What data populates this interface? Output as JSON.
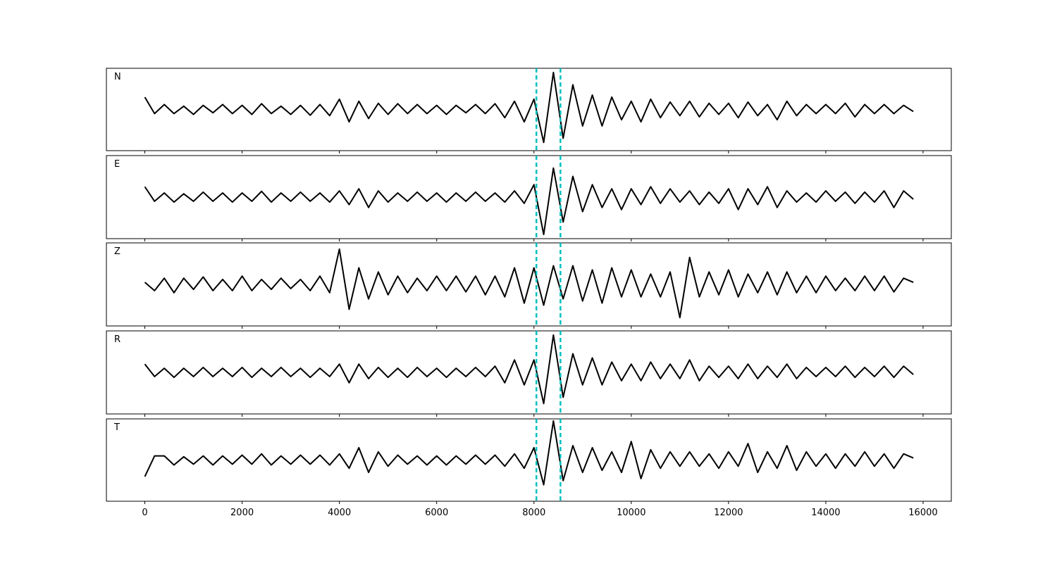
{
  "chart_data": {
    "type": "line",
    "x": [
      0,
      200,
      400,
      600,
      800,
      1000,
      1200,
      1400,
      1600,
      1800,
      2000,
      2200,
      2400,
      2600,
      2800,
      3000,
      3200,
      3400,
      3600,
      3800,
      4000,
      4200,
      4400,
      4600,
      4800,
      5000,
      5200,
      5400,
      5600,
      5800,
      6000,
      6200,
      6400,
      6600,
      6800,
      7000,
      7200,
      7400,
      7600,
      7800,
      8000,
      8200,
      8400,
      8600,
      8800,
      9000,
      9200,
      9400,
      9600,
      9800,
      10000,
      10200,
      10400,
      10600,
      10800,
      11000,
      11200,
      11400,
      11600,
      11800,
      12000,
      12200,
      12400,
      12600,
      12800,
      13000,
      13200,
      13400,
      13600,
      13800,
      14000,
      14200,
      14400,
      14600,
      14800,
      15000,
      15200,
      15400,
      15600,
      15800
    ],
    "series": [
      {
        "name": "N",
        "color": "#000000",
        "values": [
          0.3,
          -0.1,
          0.12,
          -0.1,
          0.08,
          -0.12,
          0.1,
          -0.08,
          0.12,
          -0.1,
          0.1,
          -0.12,
          0.14,
          -0.1,
          0.08,
          -0.12,
          0.1,
          -0.14,
          0.12,
          -0.15,
          0.25,
          -0.3,
          0.2,
          -0.22,
          0.15,
          -0.12,
          0.14,
          -0.1,
          0.12,
          -0.1,
          0.1,
          -0.12,
          0.1,
          -0.08,
          0.12,
          -0.1,
          0.14,
          -0.2,
          0.2,
          -0.3,
          0.25,
          -0.8,
          0.9,
          -0.7,
          0.6,
          -0.4,
          0.35,
          -0.4,
          0.3,
          -0.25,
          0.2,
          -0.3,
          0.25,
          -0.2,
          0.18,
          -0.15,
          0.2,
          -0.18,
          0.15,
          -0.12,
          0.15,
          -0.2,
          0.18,
          -0.15,
          0.12,
          -0.25,
          0.2,
          -0.15,
          0.12,
          -0.1,
          0.12,
          -0.1,
          0.15,
          -0.18,
          0.12,
          -0.1,
          0.12,
          -0.1,
          0.1,
          -0.05
        ]
      },
      {
        "name": "E",
        "color": "#000000",
        "values": [
          0.25,
          -0.1,
          0.1,
          -0.12,
          0.08,
          -0.1,
          0.12,
          -0.1,
          0.1,
          -0.12,
          0.1,
          -0.1,
          0.14,
          -0.12,
          0.1,
          -0.1,
          0.12,
          -0.1,
          0.1,
          -0.12,
          0.15,
          -0.18,
          0.2,
          -0.25,
          0.15,
          -0.12,
          0.1,
          -0.1,
          0.12,
          -0.1,
          0.1,
          -0.12,
          0.1,
          -0.1,
          0.12,
          -0.1,
          0.1,
          -0.12,
          0.15,
          -0.15,
          0.3,
          -0.9,
          0.7,
          -0.6,
          0.5,
          -0.35,
          0.3,
          -0.25,
          0.2,
          -0.3,
          0.2,
          -0.18,
          0.25,
          -0.15,
          0.2,
          -0.12,
          0.15,
          -0.18,
          0.12,
          -0.15,
          0.2,
          -0.3,
          0.2,
          -0.18,
          0.25,
          -0.25,
          0.15,
          -0.12,
          0.1,
          -0.12,
          0.15,
          -0.1,
          0.12,
          -0.15,
          0.12,
          -0.12,
          0.15,
          -0.25,
          0.15,
          -0.05
        ]
      },
      {
        "name": "Z",
        "color": "#000000",
        "values": [
          0.05,
          -0.15,
          0.15,
          -0.2,
          0.15,
          -0.12,
          0.18,
          -0.15,
          0.12,
          -0.15,
          0.2,
          -0.15,
          0.12,
          -0.12,
          0.15,
          -0.1,
          0.12,
          -0.15,
          0.2,
          -0.2,
          0.85,
          -0.6,
          0.4,
          -0.35,
          0.3,
          -0.25,
          0.2,
          -0.2,
          0.15,
          -0.15,
          0.2,
          -0.15,
          0.2,
          -0.18,
          0.2,
          -0.25,
          0.2,
          -0.3,
          0.4,
          -0.45,
          0.4,
          -0.5,
          0.45,
          -0.35,
          0.45,
          -0.4,
          0.35,
          -0.45,
          0.4,
          -0.3,
          0.35,
          -0.3,
          0.25,
          -0.3,
          0.3,
          -0.8,
          0.65,
          -0.3,
          0.3,
          -0.25,
          0.35,
          -0.3,
          0.25,
          -0.2,
          0.3,
          -0.25,
          0.3,
          -0.2,
          0.2,
          -0.2,
          0.2,
          -0.15,
          0.15,
          -0.15,
          0.2,
          -0.15,
          0.2,
          -0.18,
          0.15,
          0.05
        ]
      },
      {
        "name": "R",
        "color": "#000000",
        "values": [
          0.2,
          -0.1,
          0.1,
          -0.12,
          0.1,
          -0.1,
          0.12,
          -0.1,
          0.1,
          -0.1,
          0.12,
          -0.12,
          0.1,
          -0.1,
          0.12,
          -0.1,
          0.1,
          -0.12,
          0.1,
          -0.1,
          0.2,
          -0.25,
          0.2,
          -0.15,
          0.12,
          -0.12,
          0.1,
          -0.12,
          0.12,
          -0.1,
          0.1,
          -0.12,
          0.1,
          -0.1,
          0.12,
          -0.1,
          0.15,
          -0.25,
          0.3,
          -0.3,
          0.3,
          -0.75,
          0.9,
          -0.6,
          0.45,
          -0.3,
          0.35,
          -0.3,
          0.25,
          -0.2,
          0.2,
          -0.2,
          0.25,
          -0.15,
          0.2,
          -0.15,
          0.3,
          -0.2,
          0.15,
          -0.12,
          0.15,
          -0.15,
          0.2,
          -0.15,
          0.15,
          -0.12,
          0.2,
          -0.15,
          0.12,
          -0.1,
          0.12,
          -0.1,
          0.15,
          -0.12,
          0.12,
          -0.1,
          0.15,
          -0.12,
          0.15,
          -0.05
        ]
      },
      {
        "name": "T",
        "color": "#000000",
        "values": [
          -0.4,
          0.1,
          0.1,
          -0.12,
          0.08,
          -0.1,
          0.1,
          -0.12,
          0.1,
          -0.1,
          0.12,
          -0.1,
          0.15,
          -0.12,
          0.1,
          -0.1,
          0.12,
          -0.1,
          0.12,
          -0.12,
          0.15,
          -0.2,
          0.3,
          -0.3,
          0.2,
          -0.15,
          0.12,
          -0.1,
          0.1,
          -0.12,
          0.1,
          -0.12,
          0.1,
          -0.1,
          0.12,
          -0.1,
          0.12,
          -0.15,
          0.15,
          -0.2,
          0.3,
          -0.6,
          0.95,
          -0.5,
          0.35,
          -0.3,
          0.3,
          -0.25,
          0.2,
          -0.3,
          0.45,
          -0.45,
          0.25,
          -0.2,
          0.2,
          -0.15,
          0.2,
          -0.15,
          0.15,
          -0.2,
          0.2,
          -0.15,
          0.4,
          -0.3,
          0.2,
          -0.2,
          0.35,
          -0.25,
          0.2,
          -0.15,
          0.15,
          -0.2,
          0.15,
          -0.15,
          0.2,
          -0.15,
          0.15,
          -0.2,
          0.15,
          0.05
        ]
      }
    ],
    "markers": [
      8050,
      8545
    ],
    "marker_color": "#00bfbf",
    "xlim": [
      -790,
      16580
    ],
    "xticks": [
      0,
      2000,
      4000,
      6000,
      8000,
      10000,
      12000,
      14000,
      16000
    ],
    "ylim": [
      -1,
      1
    ]
  }
}
